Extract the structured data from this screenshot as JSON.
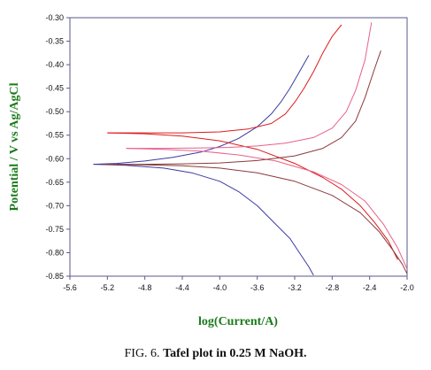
{
  "chart_data": {
    "type": "line",
    "title": "",
    "xlabel": "log(Current/A)",
    "ylabel": "Potential / V vs Ag/AgCl",
    "xlim": [
      -5.6,
      -2.0
    ],
    "ylim": [
      -0.85,
      -0.3
    ],
    "xticks": [
      "-5.6",
      "-5.2",
      "-4.8",
      "-4.4",
      "-4.0",
      "-3.6",
      "-3.2",
      "-2.8",
      "-2.4",
      "-2.0"
    ],
    "yticks": [
      "-0.30",
      "-0.35",
      "-0.40",
      "-0.45",
      "-0.50",
      "-0.55",
      "-0.60",
      "-0.65",
      "-0.70",
      "-0.75",
      "-0.80",
      "-0.85"
    ],
    "grid": false,
    "series": [
      {
        "color": "#3a3aa0",
        "x": [
          -5.35,
          -5.1,
          -4.8,
          -4.5,
          -4.2,
          -4.0,
          -3.8,
          -3.6,
          -3.45,
          -3.35,
          -3.25,
          -3.15,
          -3.05
        ],
        "y": [
          -0.612,
          -0.61,
          -0.605,
          -0.597,
          -0.586,
          -0.574,
          -0.557,
          -0.532,
          -0.505,
          -0.48,
          -0.45,
          -0.415,
          -0.38
        ]
      },
      {
        "color": "#3a3aa0",
        "x": [
          -5.35,
          -5.0,
          -4.6,
          -4.3,
          -4.0,
          -3.8,
          -3.6,
          -3.4,
          -3.25,
          -3.15,
          -3.05,
          -3.0
        ],
        "y": [
          -0.612,
          -0.614,
          -0.62,
          -0.63,
          -0.648,
          -0.67,
          -0.7,
          -0.74,
          -0.77,
          -0.8,
          -0.83,
          -0.848
        ]
      },
      {
        "color": "#dd1a1a",
        "x": [
          -5.2,
          -4.8,
          -4.4,
          -4.0,
          -3.7,
          -3.45,
          -3.3,
          -3.2,
          -3.1,
          -3.0,
          -2.9,
          -2.8,
          -2.7
        ],
        "y": [
          -0.545,
          -0.545,
          -0.545,
          -0.543,
          -0.537,
          -0.525,
          -0.505,
          -0.48,
          -0.45,
          -0.415,
          -0.375,
          -0.34,
          -0.315
        ]
      },
      {
        "color": "#dd1a1a",
        "x": [
          -5.2,
          -4.8,
          -4.4,
          -4.0,
          -3.6,
          -3.2,
          -2.9,
          -2.7,
          -2.5,
          -2.35,
          -2.2,
          -2.1
        ],
        "y": [
          -0.545,
          -0.547,
          -0.552,
          -0.562,
          -0.58,
          -0.61,
          -0.64,
          -0.665,
          -0.7,
          -0.735,
          -0.775,
          -0.815
        ]
      },
      {
        "color": "#e8608a",
        "x": [
          -5.0,
          -4.6,
          -4.2,
          -3.9,
          -3.6,
          -3.3,
          -3.0,
          -2.8,
          -2.65,
          -2.55,
          -2.45,
          -2.38
        ],
        "y": [
          -0.578,
          -0.578,
          -0.577,
          -0.576,
          -0.573,
          -0.567,
          -0.555,
          -0.535,
          -0.5,
          -0.455,
          -0.39,
          -0.31
        ]
      },
      {
        "color": "#e8608a",
        "x": [
          -5.0,
          -4.6,
          -4.2,
          -3.8,
          -3.4,
          -3.0,
          -2.7,
          -2.45,
          -2.25,
          -2.1,
          -2.0
        ],
        "y": [
          -0.578,
          -0.58,
          -0.584,
          -0.592,
          -0.605,
          -0.628,
          -0.655,
          -0.69,
          -0.74,
          -0.79,
          -0.835
        ]
      },
      {
        "color": "#8a3a3a",
        "x": [
          -5.25,
          -4.8,
          -4.4,
          -4.0,
          -3.6,
          -3.2,
          -2.9,
          -2.7,
          -2.55,
          -2.45,
          -2.35,
          -2.28
        ],
        "y": [
          -0.612,
          -0.612,
          -0.611,
          -0.609,
          -0.604,
          -0.594,
          -0.578,
          -0.555,
          -0.52,
          -0.47,
          -0.41,
          -0.37
        ]
      },
      {
        "color": "#8a3a3a",
        "x": [
          -5.25,
          -4.8,
          -4.4,
          -4.0,
          -3.6,
          -3.2,
          -2.8,
          -2.5,
          -2.3,
          -2.15,
          -2.05,
          -2.0
        ],
        "y": [
          -0.612,
          -0.613,
          -0.615,
          -0.62,
          -0.63,
          -0.648,
          -0.678,
          -0.715,
          -0.755,
          -0.795,
          -0.825,
          -0.845
        ]
      }
    ]
  },
  "caption": {
    "prefix": "FIG. 6. ",
    "text": "Tafel plot in 0.25 M NaOH."
  }
}
